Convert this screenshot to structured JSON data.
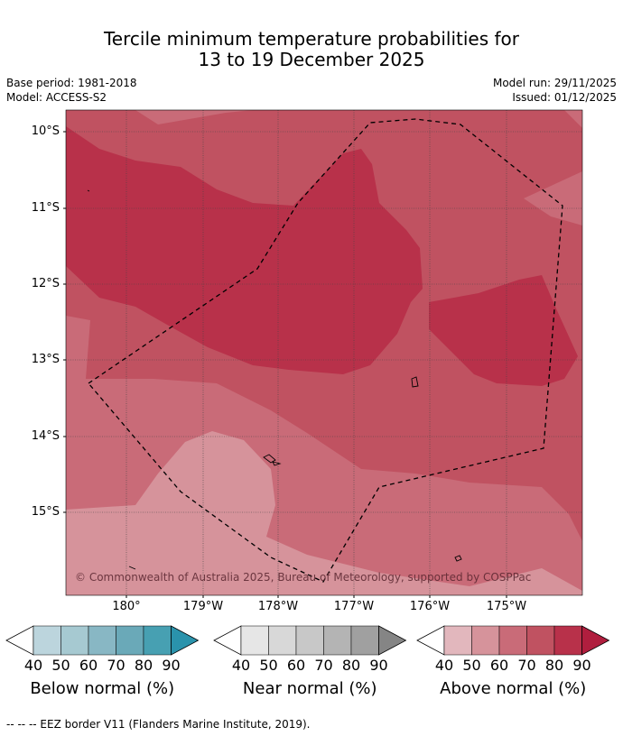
{
  "title_line1": "Tercile minimum temperature probabilities for",
  "title_line2": "13 to 19 December 2025",
  "base_period": "Base period: 1981-2018",
  "model": "Model: ACCESS-S2",
  "model_run": "Model run: 29/11/2025",
  "issued": "Issued: 01/12/2025",
  "lat_labels": [
    "10°S",
    "11°S",
    "12°S",
    "13°S",
    "14°S",
    "15°S"
  ],
  "lon_labels": [
    "180°",
    "179°W",
    "178°W",
    "177°W",
    "176°W",
    "175°W"
  ],
  "copyright": "© Commonwealth of Australia 2025, Bureau of Meteorology, supported by COSPPac",
  "legends": [
    {
      "title": "Below normal (%)",
      "ticks": [
        "40",
        "50",
        "60",
        "70",
        "80",
        "90"
      ],
      "colors": [
        "#ffffff",
        "#bcd5dd",
        "#a6c9d1",
        "#88b7c4",
        "#6aa9b8",
        "#47a0b2",
        "#2a93ac"
      ]
    },
    {
      "title": "Near normal (%)",
      "ticks": [
        "40",
        "50",
        "60",
        "70",
        "80",
        "90"
      ],
      "colors": [
        "#ffffff",
        "#e6e6e6",
        "#d8d8d8",
        "#c8c8c8",
        "#b4b4b4",
        "#a0a0a0",
        "#858585"
      ]
    },
    {
      "title": "Above normal (%)",
      "ticks": [
        "40",
        "50",
        "60",
        "70",
        "80",
        "90"
      ],
      "colors": [
        "#ffffff",
        "#e2b7bd",
        "#d6939b",
        "#c96b78",
        "#c05261",
        "#b8314a",
        "#b01e3e"
      ]
    }
  ],
  "footnote": "--  --  -- EEZ border V11 (Flanders Marine Institute, 2019)."
}
